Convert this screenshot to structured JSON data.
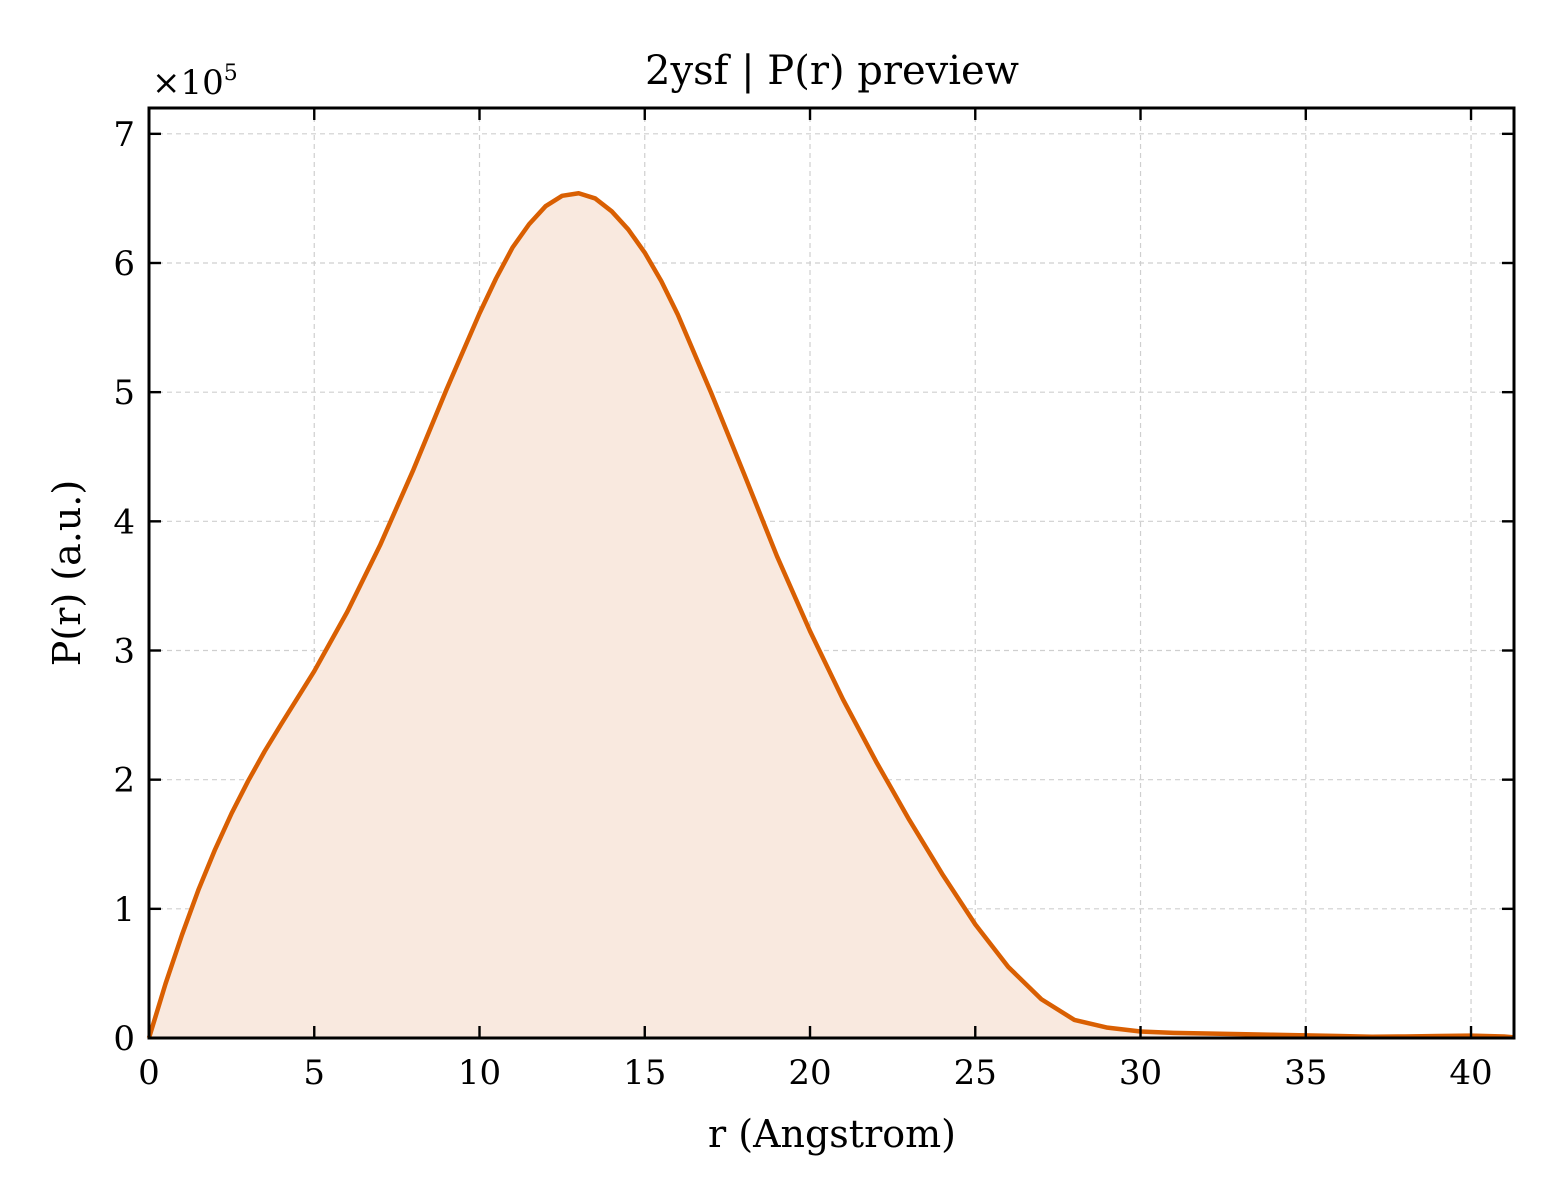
{
  "chart_data": {
    "type": "area",
    "title": "2ysf | P(r) preview",
    "xlabel": "r (Angstrom)",
    "ylabel": "P(r) (a.u.)",
    "y_multiplier": "×10",
    "y_multiplier_exponent": "5",
    "xlim": [
      0,
      41.3
    ],
    "ylim": [
      0,
      7.2
    ],
    "x_ticks": [
      0,
      5,
      10,
      15,
      20,
      25,
      30,
      35,
      40
    ],
    "y_ticks": [
      0,
      1,
      2,
      3,
      4,
      5,
      6,
      7
    ],
    "grid": true,
    "line_color": "#d95f02",
    "fill_color": "#f9e9df",
    "series": [
      {
        "x": [
          0,
          0.5,
          1,
          1.5,
          2,
          2.5,
          3,
          3.5,
          4,
          5,
          6,
          7,
          8,
          9,
          10,
          10.5,
          11,
          11.5,
          12,
          12.5,
          13,
          13.5,
          14,
          14.5,
          15,
          15.5,
          16,
          17,
          18,
          19,
          20,
          21,
          22,
          23,
          24,
          25,
          26,
          27,
          28,
          29,
          30,
          31,
          32,
          33,
          34,
          35,
          36,
          37,
          38,
          39,
          40,
          41,
          41.3
        ],
        "y": [
          0,
          0.42,
          0.8,
          1.15,
          1.46,
          1.74,
          1.99,
          2.22,
          2.43,
          2.84,
          3.3,
          3.82,
          4.4,
          5.02,
          5.61,
          5.88,
          6.12,
          6.3,
          6.44,
          6.52,
          6.54,
          6.5,
          6.4,
          6.26,
          6.08,
          5.86,
          5.6,
          5.0,
          4.37,
          3.73,
          3.15,
          2.62,
          2.14,
          1.69,
          1.27,
          0.88,
          0.55,
          0.3,
          0.14,
          0.08,
          0.05,
          0.04,
          0.035,
          0.03,
          0.025,
          0.02,
          0.015,
          0.01,
          0.012,
          0.015,
          0.018,
          0.012,
          0.005
        ]
      }
    ]
  }
}
